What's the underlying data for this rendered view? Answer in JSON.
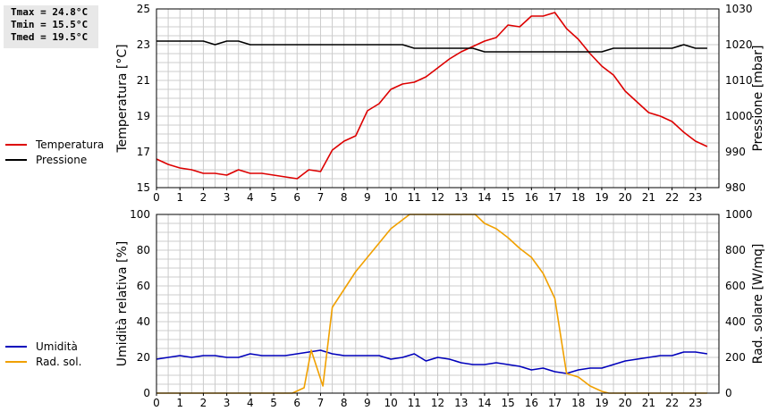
{
  "stats": {
    "tmax": "Tmax = 24.8°C",
    "tmin": "Tmin = 15.5°C",
    "tmed": "Tmed = 19.5°C"
  },
  "legend_top": [
    {
      "label": "Temperatura",
      "color": "#dd0000"
    },
    {
      "label": "Pressione",
      "color": "#000000"
    }
  ],
  "legend_bottom": [
    {
      "label": "Umidità",
      "color": "#0000bb"
    },
    {
      "label": "Rad. sol.",
      "color": "#f0a000"
    }
  ],
  "chart_data": [
    {
      "type": "line",
      "xlim": [
        0,
        24
      ],
      "x_ticks": [
        0,
        1,
        2,
        3,
        4,
        5,
        6,
        7,
        8,
        9,
        10,
        11,
        12,
        13,
        14,
        15,
        16,
        17,
        18,
        19,
        20,
        21,
        22,
        23
      ],
      "y_left": {
        "label": "Temperatura [°C]",
        "ylim": [
          15,
          25
        ],
        "ticks": [
          15,
          17,
          19,
          21,
          23,
          25
        ]
      },
      "y_right": {
        "label": "Pressione [mbar]",
        "ylim": [
          980,
          1030
        ],
        "ticks": [
          980,
          990,
          1000,
          1010,
          1020,
          1030
        ]
      },
      "grid": true,
      "series": [
        {
          "name": "Temperatura",
          "axis": "left",
          "color": "#dd0000",
          "x": [
            0,
            0.5,
            1,
            1.5,
            2,
            2.5,
            3,
            3.5,
            4,
            4.5,
            5,
            5.5,
            6,
            6.5,
            7,
            7.5,
            8,
            8.5,
            9,
            9.5,
            10,
            10.5,
            11,
            11.5,
            12,
            12.5,
            13,
            13.5,
            14,
            14.5,
            15,
            15.5,
            16,
            16.5,
            17,
            17.5,
            18,
            18.5,
            19,
            19.5,
            20,
            20.5,
            21,
            21.5,
            22,
            22.5,
            23,
            23.5
          ],
          "values": [
            16.6,
            16.3,
            16.1,
            16.0,
            15.8,
            15.8,
            15.7,
            16.0,
            15.8,
            15.8,
            15.7,
            15.6,
            15.5,
            16.0,
            15.9,
            17.1,
            17.6,
            17.9,
            19.3,
            19.7,
            20.5,
            20.8,
            20.9,
            21.2,
            21.7,
            22.2,
            22.6,
            22.9,
            23.2,
            23.4,
            24.1,
            24.0,
            24.6,
            24.6,
            24.8,
            23.9,
            23.3,
            22.5,
            21.8,
            21.3,
            20.4,
            19.8,
            19.2,
            19.0,
            18.7,
            18.1,
            17.6,
            17.3
          ]
        },
        {
          "name": "Pressione",
          "axis": "right",
          "color": "#000000",
          "x": [
            0,
            0.5,
            1,
            1.5,
            2,
            2.5,
            3,
            3.5,
            4,
            4.5,
            5,
            5.5,
            6,
            6.5,
            7,
            7.5,
            8,
            8.5,
            9,
            9.5,
            10,
            10.5,
            11,
            11.5,
            12,
            12.5,
            13,
            13.5,
            14,
            14.5,
            15,
            15.5,
            16,
            16.5,
            17,
            17.5,
            18,
            18.5,
            19,
            19.5,
            20,
            20.5,
            21,
            21.5,
            22,
            22.5,
            23,
            23.5
          ],
          "values": [
            1021,
            1021,
            1021,
            1021,
            1021,
            1020,
            1021,
            1021,
            1020,
            1020,
            1020,
            1020,
            1020,
            1020,
            1020,
            1020,
            1020,
            1020,
            1020,
            1020,
            1020,
            1020,
            1019,
            1019,
            1019,
            1019,
            1019,
            1019,
            1018,
            1018,
            1018,
            1018,
            1018,
            1018,
            1018,
            1018,
            1018,
            1018,
            1018,
            1019,
            1019,
            1019,
            1019,
            1019,
            1019,
            1020,
            1019,
            1019
          ]
        }
      ]
    },
    {
      "type": "line",
      "xlim": [
        0,
        24
      ],
      "x_ticks": [
        0,
        1,
        2,
        3,
        4,
        5,
        6,
        7,
        8,
        9,
        10,
        11,
        12,
        13,
        14,
        15,
        16,
        17,
        18,
        19,
        20,
        21,
        22,
        23
      ],
      "y_left": {
        "label": "Umidità relativa [%]",
        "ylim": [
          0,
          100
        ],
        "ticks": [
          0,
          20,
          40,
          60,
          80,
          100
        ]
      },
      "y_right": {
        "label": "Rad. solare [W/mq]",
        "ylim": [
          0,
          1000
        ],
        "ticks": [
          0,
          200,
          400,
          600,
          800,
          1000
        ]
      },
      "grid": true,
      "series": [
        {
          "name": "Umidità",
          "axis": "left",
          "color": "#0000bb",
          "x": [
            0,
            0.5,
            1,
            1.5,
            2,
            2.5,
            3,
            3.5,
            4,
            4.5,
            5,
            5.5,
            6,
            6.5,
            7,
            7.5,
            8,
            8.5,
            9,
            9.5,
            10,
            10.5,
            11,
            11.5,
            12,
            12.5,
            13,
            13.5,
            14,
            14.5,
            15,
            15.5,
            16,
            16.5,
            17,
            17.5,
            18,
            18.5,
            19,
            19.5,
            20,
            20.5,
            21,
            21.5,
            22,
            22.5,
            23,
            23.5
          ],
          "values": [
            19,
            20,
            21,
            20,
            21,
            21,
            20,
            20,
            22,
            21,
            21,
            21,
            22,
            23,
            24,
            22,
            21,
            21,
            21,
            21,
            19,
            20,
            22,
            18,
            20,
            19,
            17,
            16,
            16,
            17,
            16,
            15,
            13,
            14,
            12,
            11,
            13,
            14,
            14,
            16,
            18,
            19,
            20,
            21,
            21,
            23,
            23,
            22
          ]
        },
        {
          "name": "Rad. sol.",
          "axis": "right",
          "color": "#f0a000",
          "x": [
            0,
            0.5,
            1,
            1.5,
            2,
            2.5,
            3,
            3.5,
            4,
            4.5,
            5,
            5.5,
            5.8,
            6.3,
            6.6,
            7.1,
            7.5,
            8,
            8.5,
            9,
            9.5,
            10,
            10.5,
            10.8,
            11.2,
            12,
            13,
            13.6,
            14,
            14.5,
            15,
            15.5,
            16,
            16.5,
            17,
            17.5,
            18,
            18.5,
            19,
            19.3,
            19.5,
            20,
            20.5,
            21,
            21.5,
            22,
            22.5,
            23,
            23.5
          ],
          "values": [
            0,
            0,
            0,
            0,
            0,
            0,
            0,
            0,
            0,
            0,
            0,
            0,
            0,
            30,
            240,
            40,
            480,
            580,
            680,
            760,
            840,
            920,
            970,
            1000,
            1030,
            1070,
            1030,
            1000,
            950,
            920,
            870,
            810,
            760,
            670,
            530,
            110,
            90,
            40,
            10,
            0,
            0,
            0,
            0,
            0,
            0,
            0,
            0,
            0,
            0
          ]
        }
      ]
    }
  ]
}
